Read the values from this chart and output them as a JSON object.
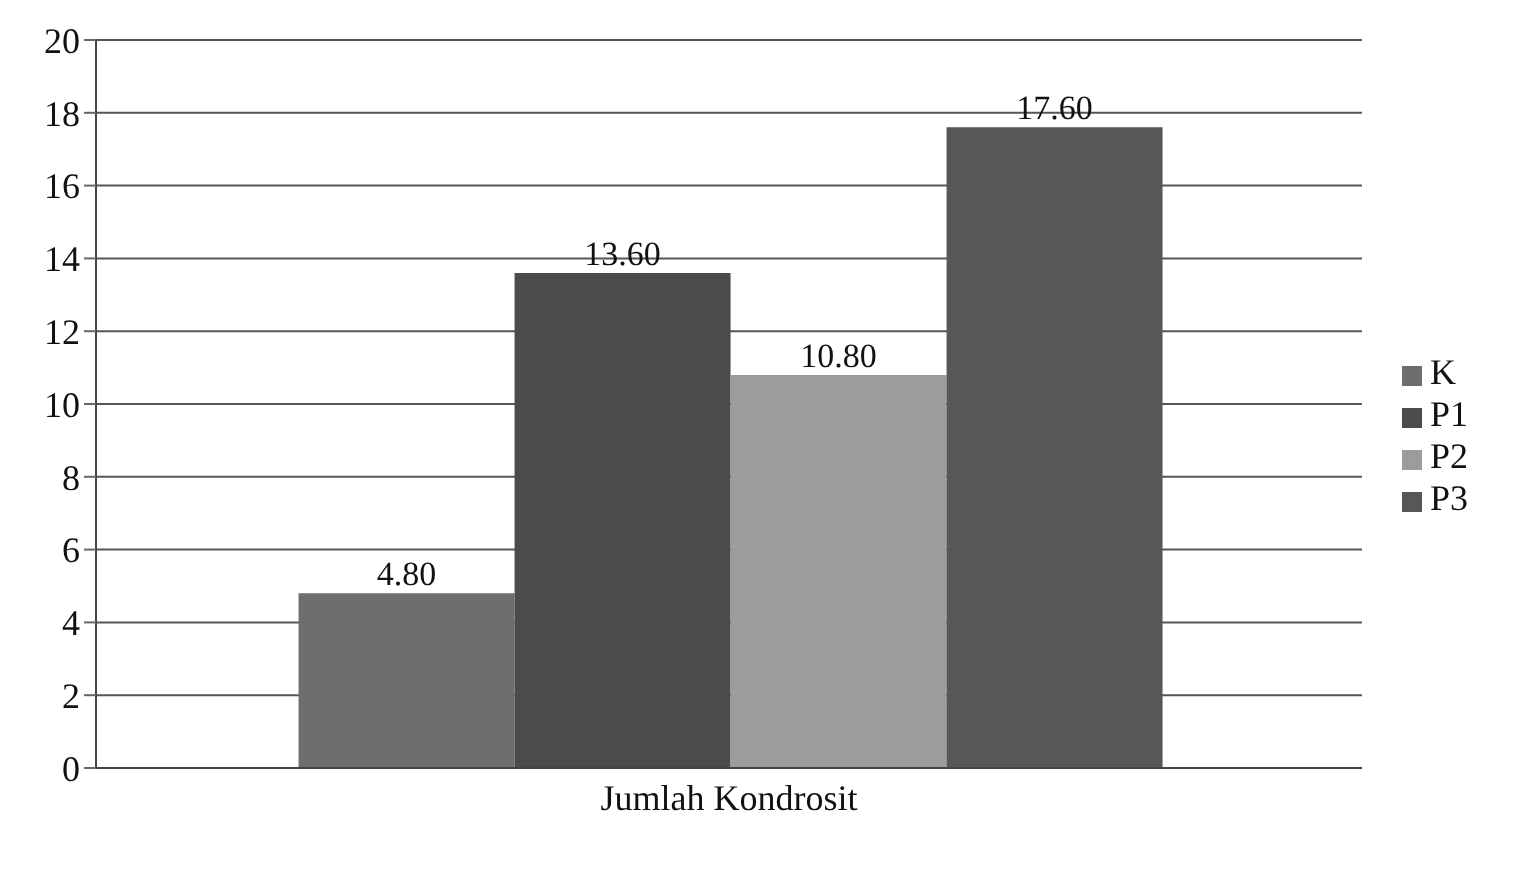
{
  "chart_data": {
    "type": "bar",
    "categories": [
      "Jumlah Kondrosit"
    ],
    "series": [
      {
        "name": "K",
        "color": "#6e6e6e",
        "values": [
          4.8
        ],
        "value_labels": [
          "4.80"
        ]
      },
      {
        "name": "P1",
        "color": "#4b4b4b",
        "values": [
          13.6
        ],
        "value_labels": [
          "13.60"
        ]
      },
      {
        "name": "P2",
        "color": "#9c9c9c",
        "values": [
          10.8
        ],
        "value_labels": [
          "10.80"
        ]
      },
      {
        "name": "P3",
        "color": "#575757",
        "values": [
          17.6
        ],
        "value_labels": [
          "17.60"
        ]
      }
    ],
    "ylim": [
      0,
      20
    ],
    "yticks": [
      0,
      2,
      4,
      6,
      8,
      10,
      12,
      14,
      16,
      18,
      20
    ],
    "grid": "y",
    "legend": "right"
  }
}
